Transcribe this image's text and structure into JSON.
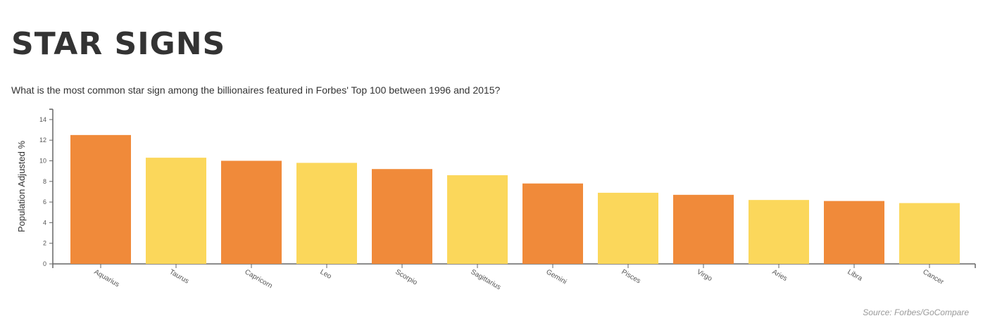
{
  "header": {
    "title": "STAR SIGNS",
    "subtitle": "What is the most common star sign among the billionaires featured in Forbes' Top 100 between 1996 and 2015?"
  },
  "footer": {
    "source": "Source: Forbes/GoCompare"
  },
  "colors": {
    "orange": "#f08a3a",
    "yellow": "#fbd75b",
    "axis": "#666666",
    "text": "#333333"
  },
  "chart_data": {
    "type": "bar",
    "title": "STAR SIGNS",
    "xlabel": "",
    "ylabel": "Population Adjusted %",
    "ylim": [
      0,
      15
    ],
    "yticks": [
      0,
      2,
      4,
      6,
      8,
      10,
      12,
      14
    ],
    "grid": false,
    "categories": [
      "Aquarius",
      "Taurus",
      "Capricorn",
      "Leo",
      "Scorpio",
      "Sagittarius",
      "Gemini",
      "Pisces",
      "Virgo",
      "Aries",
      "Libra",
      "Cancer"
    ],
    "values": [
      12.5,
      10.3,
      10.0,
      9.8,
      9.2,
      8.6,
      7.8,
      6.9,
      6.7,
      6.2,
      6.1,
      5.9
    ],
    "bar_colors": [
      "#f08a3a",
      "#fbd75b",
      "#f08a3a",
      "#fbd75b",
      "#f08a3a",
      "#fbd75b",
      "#f08a3a",
      "#fbd75b",
      "#f08a3a",
      "#fbd75b",
      "#f08a3a",
      "#fbd75b"
    ]
  }
}
